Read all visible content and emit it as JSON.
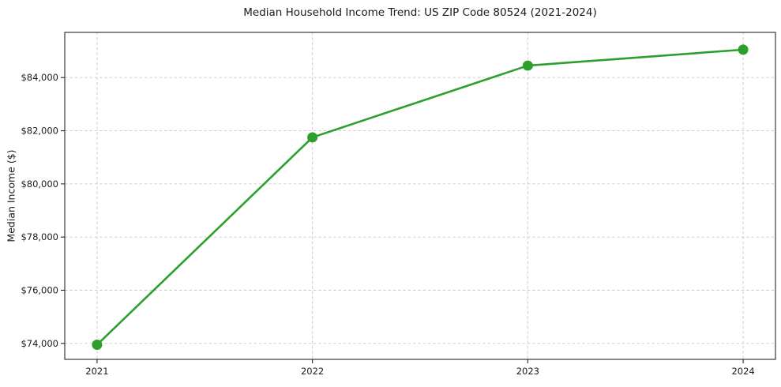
{
  "page": {
    "background": "#ffffff"
  },
  "chart_data": {
    "type": "line",
    "title": "Median Household Income Trend: US ZIP Code 80524 (2021-2024)",
    "xlabel": "",
    "ylabel": "Median Income ($)",
    "categories": [
      "2021",
      "2022",
      "2023",
      "2024"
    ],
    "series": [
      {
        "name": "Median Income ($)",
        "values": [
          73950,
          81750,
          84450,
          85050
        ],
        "color": "#2ca02c",
        "marker": "circle",
        "line_width": 2.6,
        "marker_radius": 6.5
      }
    ],
    "yticks": [
      74000,
      76000,
      78000,
      80000,
      82000,
      84000
    ],
    "ytick_labels": [
      "$74,000",
      "$76,000",
      "$78,000",
      "$80,000",
      "$82,000",
      "$84,000"
    ],
    "ylim": [
      73400,
      85700
    ],
    "x_margin_fraction": 0.05,
    "grid": {
      "show": true,
      "style": "dashed",
      "color": "#c9c9c9"
    },
    "legend_position": "none",
    "axis_color": "#262626",
    "text_color": "#1a1a1a"
  }
}
